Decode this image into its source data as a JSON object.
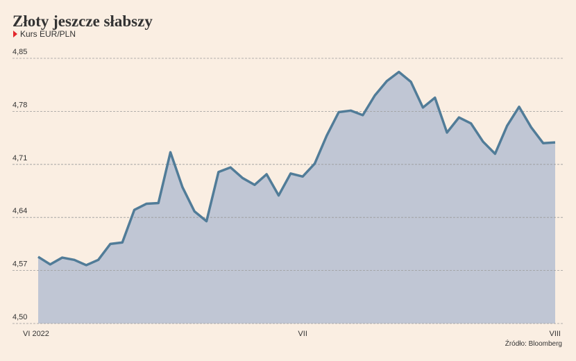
{
  "chart_data": {
    "type": "area-line",
    "title": "Złoty jeszcze słabszy",
    "subtitle": "Kurs EUR/PLN",
    "source": "Źródło: Bloomberg",
    "categories": [
      "VI 2022",
      null,
      null,
      null,
      null,
      null,
      null,
      null,
      null,
      null,
      null,
      null,
      null,
      null,
      null,
      null,
      null,
      null,
      null,
      null,
      null,
      null,
      "VII",
      null,
      null,
      null,
      null,
      null,
      null,
      null,
      null,
      null,
      null,
      null,
      null,
      null,
      null,
      null,
      null,
      null,
      null,
      null,
      null,
      "VIII"
    ],
    "values": [
      4.588,
      4.578,
      4.587,
      4.584,
      4.577,
      4.584,
      4.605,
      4.607,
      4.65,
      4.658,
      4.659,
      4.726,
      4.68,
      4.648,
      4.635,
      4.7,
      4.706,
      4.692,
      4.683,
      4.697,
      4.669,
      4.698,
      4.694,
      4.711,
      4.748,
      4.779,
      4.781,
      4.775,
      4.801,
      4.82,
      4.832,
      4.819,
      4.785,
      4.798,
      4.752,
      4.772,
      4.764,
      4.74,
      4.724,
      4.761,
      4.786,
      4.759,
      4.738,
      4.739
    ],
    "color": "#517c98",
    "fill": "#c0c6d4",
    "ylim": [
      4.5,
      4.85
    ],
    "yticks": [
      {
        "value": 4.5,
        "label": "4,50"
      },
      {
        "value": 4.57,
        "label": "4,57"
      },
      {
        "value": 4.64,
        "label": "4,64"
      },
      {
        "value": 4.71,
        "label": "4,71"
      },
      {
        "value": 4.78,
        "label": "4,78"
      },
      {
        "value": 4.85,
        "label": "4,85"
      }
    ],
    "grid": true
  }
}
